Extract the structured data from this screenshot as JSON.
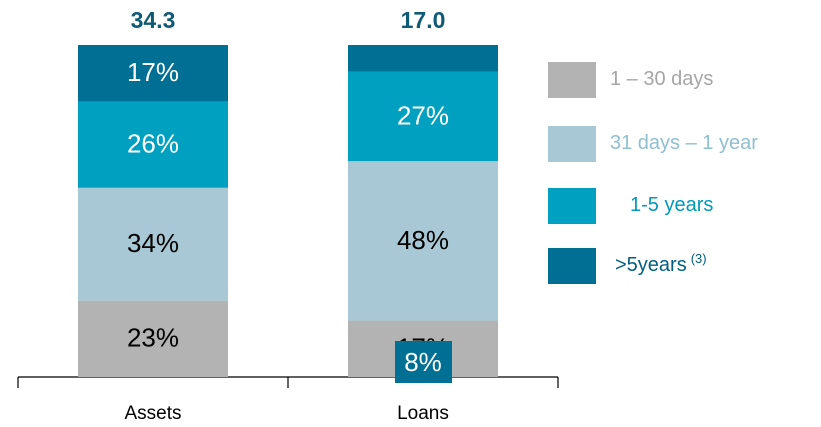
{
  "chart_data": {
    "type": "stacked_bar",
    "categories": [
      "Assets",
      "Loans"
    ],
    "ylim": [
      0,
      100
    ],
    "totals": {
      "values": [
        34.3,
        17.0
      ],
      "value_labels": [
        "34.3",
        "17.0"
      ],
      "color": "#0f5a75"
    },
    "series": [
      {
        "name": "1 – 30 days",
        "color": "#b3b3b3",
        "legend_color": "#a6a6a6",
        "label_color": "#000000",
        "values": [
          23,
          17
        ],
        "value_labels": [
          "23%",
          "17%"
        ]
      },
      {
        "name": "31 days – 1 year",
        "color": "#a7c8d4",
        "legend_color": "#8fc0d0",
        "label_color": "#000000",
        "values": [
          34,
          48
        ],
        "value_labels": [
          "34%",
          "48%"
        ]
      },
      {
        "name": "1-5 years",
        "color": "#00a0c0",
        "legend_color": "#0098bb",
        "label_color": "#ffffff",
        "values": [
          26,
          27
        ],
        "value_labels": [
          "26%",
          "27%"
        ]
      },
      {
        "name": ">5years",
        "footnote": "(3)",
        "color": "#006f94",
        "legend_color": "#005f80",
        "label_color": "#ffffff",
        "values": [
          17,
          8
        ],
        "value_labels": [
          "17%",
          "8%"
        ]
      }
    ]
  }
}
